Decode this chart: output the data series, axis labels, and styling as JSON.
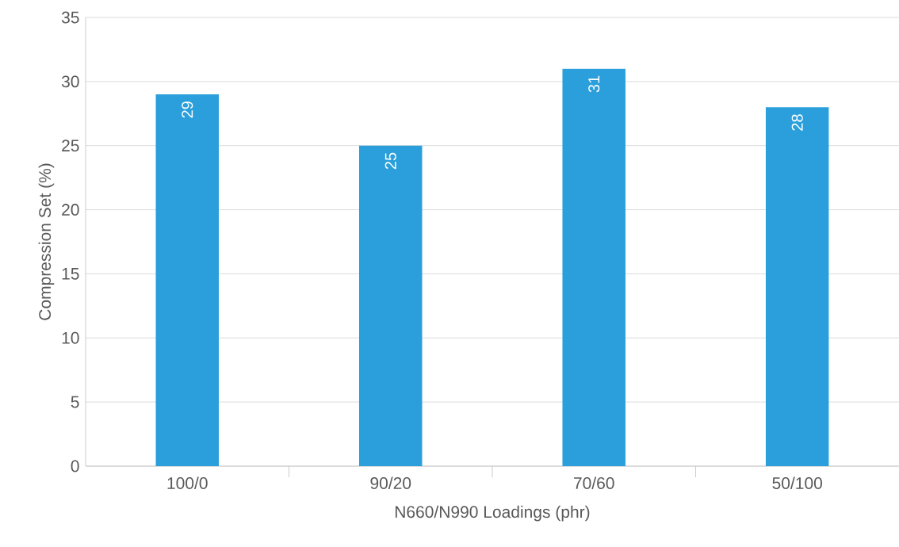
{
  "chart_data": {
    "type": "bar",
    "xlabel": "N660/N990 Loadings (phr)",
    "ylabel": "Compression Set (%)",
    "categories": [
      "100/0",
      "90/20",
      "70/60",
      "50/100"
    ],
    "values": [
      29,
      25,
      31,
      28
    ],
    "color": "#2a9fdb",
    "ylim": [
      0,
      35
    ],
    "yticks": [
      0,
      5,
      10,
      15,
      20,
      25,
      30,
      35
    ],
    "grid": "y",
    "data_labels": true
  }
}
